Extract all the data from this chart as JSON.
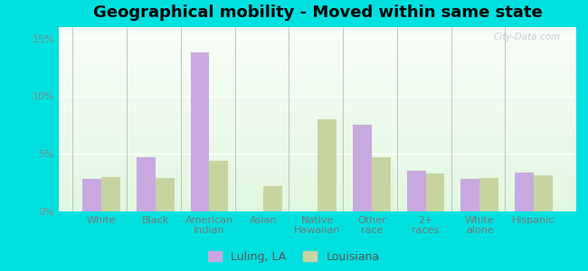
{
  "title": "Geographical mobility - Moved within same state",
  "categories": [
    "White",
    "Black",
    "American\nIndian",
    "Asian",
    "Native\nHawaiian",
    "Other\nrace",
    "2+\nraces",
    "White\nalone",
    "Hispanic"
  ],
  "luling": [
    2.8,
    4.7,
    13.8,
    0.0,
    0.0,
    7.5,
    3.5,
    2.8,
    3.4
  ],
  "louisiana": [
    3.0,
    2.9,
    4.4,
    2.2,
    8.0,
    4.7,
    3.3,
    2.9,
    3.1
  ],
  "luling_color": "#c9a8e0",
  "louisiana_color": "#c8d4a0",
  "background_outer": "#00e0e0",
  "yticks": [
    0,
    5,
    10,
    15
  ],
  "ylim": [
    0,
    16.0
  ],
  "bar_width": 0.35,
  "title_fontsize": 13,
  "tick_fontsize": 8,
  "legend_fontsize": 9,
  "watermark": "City-Data.com"
}
